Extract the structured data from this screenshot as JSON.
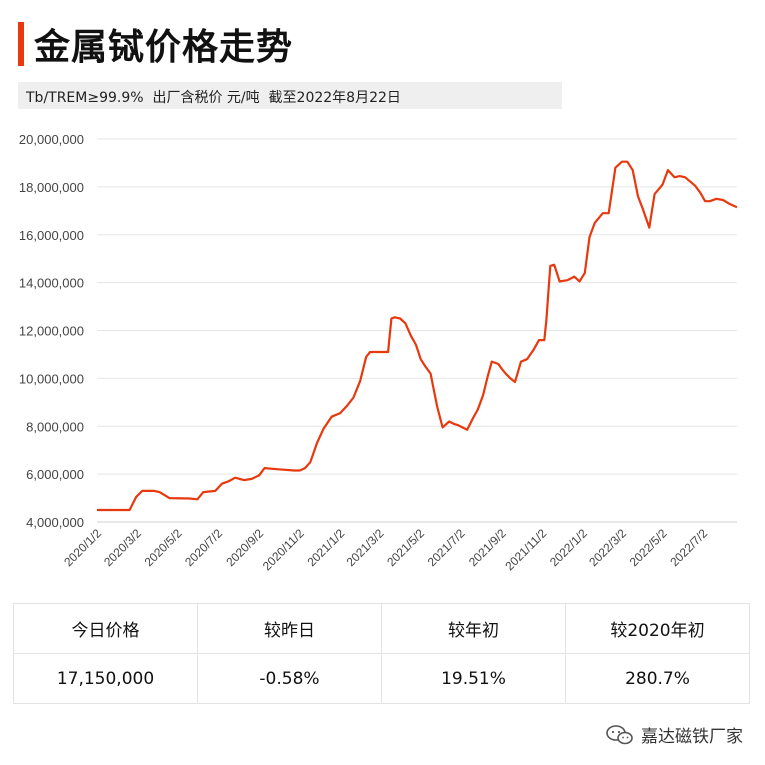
{
  "header": {
    "title": "金属铽价格走势",
    "subtitle": "Tb/TREM≥99.9%  出厂含税价 元/吨  截至2022年8月22日"
  },
  "colors": {
    "accent": "#e8380d",
    "line": "#e8380d",
    "grid": "#e6e6e6"
  },
  "chart_data": {
    "type": "line",
    "title": "",
    "xlabel": "",
    "ylabel": "",
    "ylim": [
      4000000,
      20000000
    ],
    "yticks": [
      4000000,
      6000000,
      8000000,
      10000000,
      12000000,
      14000000,
      16000000,
      18000000,
      20000000
    ],
    "ytick_labels": [
      "4,000,000",
      "6,000,000",
      "8,000,000",
      "10,000,000",
      "12,000,000",
      "14,000,000",
      "16,000,000",
      "18,000,000",
      "20,000,000"
    ],
    "xlim": [
      "2020-01-02",
      "2022-08-22"
    ],
    "xticks": [
      "2020-01-02",
      "2020-03-02",
      "2020-05-02",
      "2020-07-02",
      "2020-09-02",
      "2020-11-02",
      "2021-01-02",
      "2021-03-02",
      "2021-05-02",
      "2021-07-02",
      "2021-09-02",
      "2021-11-02",
      "2022-01-02",
      "2022-03-02",
      "2022-05-02",
      "2022-07-02"
    ],
    "xtick_labels": [
      "2020/1/2",
      "2020/3/2",
      "2020/5/2",
      "2020/7/2",
      "2020/9/2",
      "2020/11/2",
      "2021/1/2",
      "2021/3/2",
      "2021/5/2",
      "2021/7/2",
      "2021/9/2",
      "2021/11/2",
      "2022/1/2",
      "2022/3/2",
      "2022/5/2",
      "2022/7/2"
    ],
    "grid": true,
    "legend": "none",
    "series": [
      {
        "x": [
          "2020-01-02",
          "2020-02-20",
          "2020-03-01",
          "2020-03-10",
          "2020-03-28",
          "2020-04-05",
          "2020-04-20",
          "2020-05-20",
          "2020-06-01",
          "2020-06-10",
          "2020-06-28",
          "2020-07-08",
          "2020-07-18",
          "2020-07-28",
          "2020-08-10",
          "2020-08-22",
          "2020-09-02",
          "2020-09-10",
          "2020-10-01",
          "2020-10-25",
          "2020-11-02",
          "2020-11-10",
          "2020-11-18",
          "2020-11-28",
          "2020-12-08",
          "2020-12-20",
          "2021-01-02",
          "2021-01-12",
          "2021-01-22",
          "2021-02-01",
          "2021-02-10",
          "2021-02-16",
          "2021-02-20",
          "2021-02-28",
          "2021-03-15",
          "2021-03-20",
          "2021-03-25",
          "2021-04-02",
          "2021-04-10",
          "2021-04-18",
          "2021-04-26",
          "2021-05-03",
          "2021-05-10",
          "2021-05-18",
          "2021-05-20",
          "2021-05-28",
          "2021-06-05",
          "2021-06-15",
          "2021-06-22",
          "2021-06-28",
          "2021-07-05",
          "2021-07-12",
          "2021-07-20",
          "2021-07-28",
          "2021-08-05",
          "2021-08-12",
          "2021-08-18",
          "2021-08-28",
          "2021-09-02",
          "2021-09-08",
          "2021-09-15",
          "2021-09-22",
          "2021-10-01",
          "2021-10-10",
          "2021-10-20",
          "2021-10-28",
          "2021-11-05",
          "2021-11-08",
          "2021-11-14",
          "2021-11-20",
          "2021-11-28",
          "2021-12-10",
          "2021-12-20",
          "2021-12-28",
          "2022-01-05",
          "2022-01-12",
          "2022-01-20",
          "2022-02-01",
          "2022-02-10",
          "2022-02-20",
          "2022-03-02",
          "2022-03-10",
          "2022-03-18",
          "2022-03-26",
          "2022-04-02",
          "2022-04-12",
          "2022-04-20",
          "2022-04-26",
          "2022-05-02",
          "2022-05-10",
          "2022-05-20",
          "2022-05-28",
          "2022-06-05",
          "2022-06-20",
          "2022-06-28",
          "2022-07-05",
          "2022-07-12",
          "2022-07-22",
          "2022-08-01",
          "2022-08-10",
          "2022-08-22"
        ],
        "y": [
          4500000,
          4500000,
          5050000,
          5300000,
          5300000,
          5250000,
          5000000,
          4980000,
          4950000,
          5250000,
          5300000,
          5600000,
          5700000,
          5850000,
          5750000,
          5800000,
          5950000,
          6250000,
          6200000,
          6150000,
          6150000,
          6250000,
          6500000,
          7300000,
          7900000,
          8400000,
          8550000,
          8850000,
          9200000,
          9900000,
          10900000,
          11100000,
          11100000,
          11100000,
          11100000,
          12500000,
          12550000,
          12500000,
          12300000,
          11800000,
          11400000,
          10800000,
          10500000,
          10200000,
          9900000,
          8800000,
          7950000,
          8200000,
          8100000,
          8050000,
          7950000,
          7850000,
          8300000,
          8700000,
          9300000,
          10100000,
          10700000,
          10600000,
          10400000,
          10200000,
          10000000,
          9850000,
          10700000,
          10800000,
          11200000,
          11600000,
          11600000,
          12400000,
          14700000,
          14750000,
          14050000,
          14100000,
          14250000,
          14050000,
          14400000,
          15900000,
          16500000,
          16900000,
          16900000,
          18800000,
          19050000,
          19050000,
          18700000,
          17600000,
          17100000,
          16300000,
          17700000,
          17900000,
          18100000,
          18700000,
          18400000,
          18450000,
          18400000,
          18050000,
          17750000,
          17400000,
          17400000,
          17500000,
          17450000,
          17300000,
          17150000
        ]
      }
    ]
  },
  "stats": {
    "headers": [
      "今日价格",
      "较昨日",
      "较年初",
      "较2020年初"
    ],
    "values": [
      "17,150,000",
      "-0.58%",
      "19.51%",
      "280.7%"
    ]
  },
  "footer": {
    "brand": "嘉达磁铁厂家",
    "icon": "wechat-icon"
  }
}
